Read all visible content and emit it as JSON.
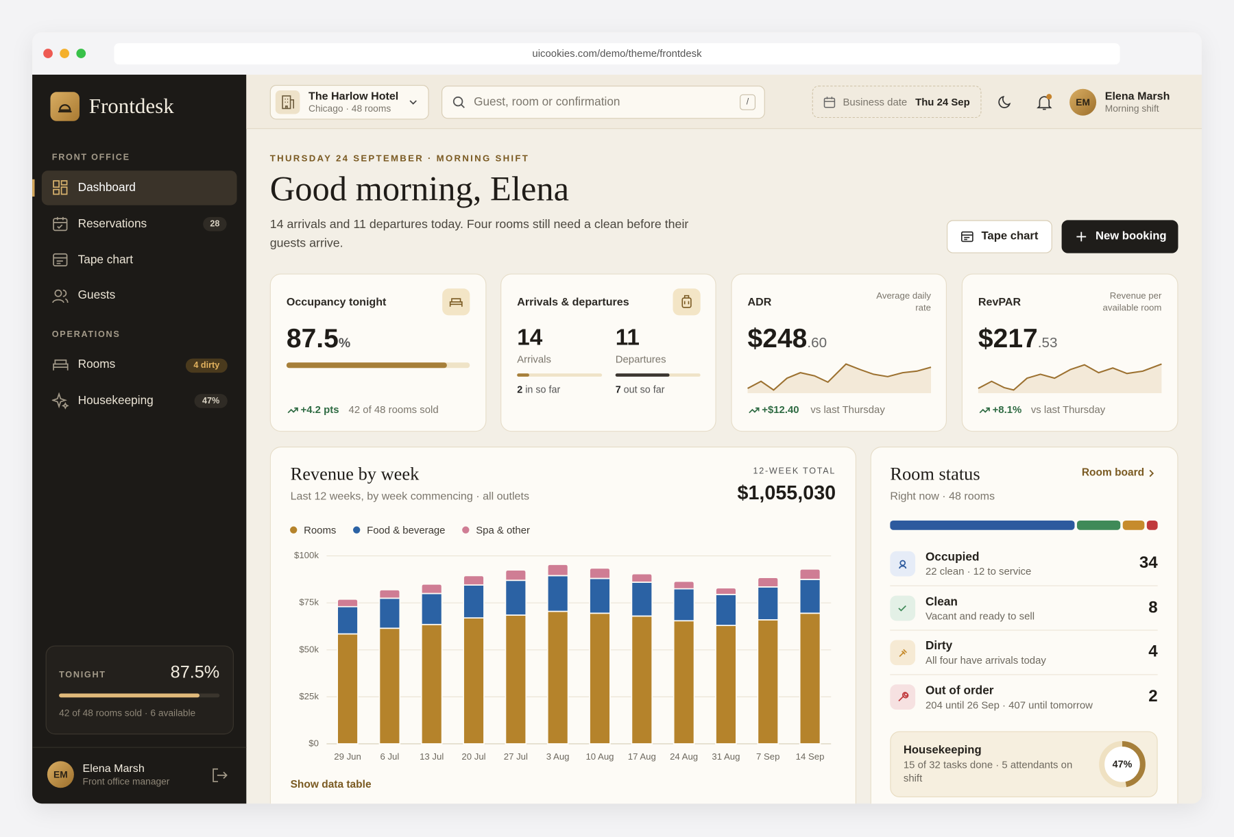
{
  "browser": {
    "url": "uicookies.com/demo/theme/frontdesk"
  },
  "sidebar": {
    "brand": "Frontdesk",
    "sections": [
      {
        "title": "FRONT OFFICE",
        "items": [
          {
            "label": "Dashboard"
          },
          {
            "label": "Reservations",
            "badge": 28
          },
          {
            "label": "Tape chart"
          },
          {
            "label": "Guests"
          }
        ]
      },
      {
        "title": "OPERATIONS",
        "items": [
          {
            "label": "Rooms",
            "badge": "4 dirty"
          },
          {
            "label": "Housekeeping",
            "badge": "47%"
          }
        ]
      }
    ],
    "tonight": {
      "label": "TONIGHT",
      "value": 87.5,
      "value_label": "87.5%",
      "note": "42 of 48 rooms sold · 6 available"
    },
    "user": {
      "initials": "EM",
      "name": "Elena Marsh",
      "role": "Front office manager"
    }
  },
  "header": {
    "hotel": "The Harlow Hotel",
    "hotel_sub": "Chicago · 48 rooms",
    "search_placeholder": "Guest, room or confirmation",
    "search_key": "/",
    "business_date_label": "Business date",
    "business_date": "Thu 24 Sep",
    "user": {
      "initials": "EM",
      "name": "Elena Marsh",
      "role": "Morning shift"
    }
  },
  "greeting": {
    "eyebrow": "THURSDAY 24 SEPTEMBER · MORNING SHIFT",
    "title": "Good morning, Elena",
    "text": "14 arrivals and 11 departures today. Four rooms still need a clean before their guests arrive.",
    "buttons": [
      "Tape chart",
      "New booking"
    ]
  },
  "kpis": {
    "occupancy": {
      "label": "Occupancy tonight",
      "value": 87.5,
      "unit": "%",
      "delta": "+4.2 pts",
      "note": "42 of 48 rooms sold"
    },
    "movements": {
      "label": "Arrivals & departures",
      "arrivals": {
        "value": 14,
        "label": "Arrivals",
        "done": 2,
        "done_label": "in so far"
      },
      "departures": {
        "value": 11,
        "label": "Departures",
        "done": 7,
        "done_label": "out so far"
      }
    },
    "adr": {
      "label": "ADR",
      "sublabel": "Average daily rate",
      "value_main": "$248",
      "value_cents": ".60",
      "delta": "+$12.40",
      "note": "vs last Thursday"
    },
    "revpar": {
      "label": "RevPAR",
      "sublabel": "Revenue per available room",
      "value_main": "$217",
      "value_cents": ".53",
      "delta": "+8.1%",
      "note": "vs last Thursday"
    }
  },
  "revenue_chart": {
    "type": "bar",
    "stacked": true,
    "title": "Revenue by week",
    "subtitle": "Last 12 weeks, by week commencing · all outlets",
    "total_label": "12-WEEK TOTAL",
    "total": "$1,055,030",
    "categories": [
      "29 Jun",
      "6 Jul",
      "13 Jul",
      "20 Jul",
      "27 Jul",
      "3 Aug",
      "10 Aug",
      "17 Aug",
      "24 Aug",
      "31 Aug",
      "7 Sep",
      "14 Sep"
    ],
    "series": [
      {
        "name": "Rooms",
        "color": "#b5832b",
        "values": [
          58500,
          61500,
          63500,
          67000,
          68500,
          70500,
          69500,
          68000,
          65500,
          63000,
          66000,
          69500
        ]
      },
      {
        "name": "Food & beverage",
        "color": "#2b62a4",
        "values": [
          14500,
          16000,
          16500,
          17500,
          18500,
          19000,
          18500,
          18000,
          17000,
          16500,
          17500,
          18000
        ]
      },
      {
        "name": "Spa & other",
        "color": "#cf7d94",
        "values": [
          4000,
          4500,
          5000,
          5000,
          5500,
          6000,
          5500,
          4500,
          4000,
          3500,
          5000,
          5500
        ]
      }
    ],
    "ylim": [
      0,
      100000
    ],
    "yticks": [
      {
        "value": 0,
        "label": "$0"
      },
      {
        "value": 25000,
        "label": "$25k"
      },
      {
        "value": 50000,
        "label": "$50k"
      },
      {
        "value": 75000,
        "label": "$75k"
      },
      {
        "value": 100000,
        "label": "$100k"
      }
    ],
    "grid": true,
    "link": "Show data table"
  },
  "room_status": {
    "title": "Room status",
    "link": "Room board",
    "subtitle": "Right now · 48 rooms",
    "statuses": [
      {
        "name": "Occupied",
        "detail": "22 clean · 12 to service",
        "count": 34,
        "color": "#2d5a9e"
      },
      {
        "name": "Clean",
        "detail": "Vacant and ready to sell",
        "count": 8,
        "color": "#3f8a58"
      },
      {
        "name": "Dirty",
        "detail": "All four have arrivals today",
        "count": 4,
        "color": "#c68b2c"
      },
      {
        "name": "Out of order",
        "detail": "204 until 26 Sep · 407 until tomorrow",
        "count": 2,
        "color": "#c0393c"
      }
    ],
    "housekeeping": {
      "title": "Housekeeping",
      "detail": "15 of 32 tasks done · 5 attendants on shift",
      "value": 47,
      "value_label": "47%"
    }
  }
}
